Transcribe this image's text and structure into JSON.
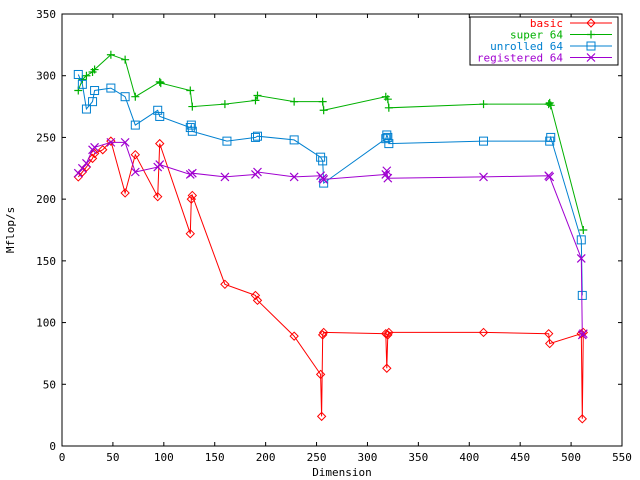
{
  "chart_data": {
    "type": "line",
    "title": "",
    "xlabel": "Dimension",
    "ylabel": "Mflop/s",
    "xlim": [
      0,
      550
    ],
    "ylim": [
      0,
      350
    ],
    "xticks": [
      0,
      50,
      100,
      150,
      200,
      250,
      300,
      350,
      400,
      450,
      500,
      550
    ],
    "yticks": [
      0,
      50,
      100,
      150,
      200,
      250,
      300,
      350
    ],
    "grid": false,
    "legend_position": "top-right",
    "series": [
      {
        "name": "basic",
        "color": "#ff0000",
        "marker": "diamond",
        "x": [
          16,
          20,
          24,
          30,
          32,
          40,
          48,
          62,
          72,
          94,
          96,
          126,
          127,
          128,
          160,
          190,
          192,
          228,
          254,
          255,
          256,
          257,
          318,
          319,
          320,
          321,
          414,
          478,
          479,
          510,
          511,
          512
        ],
        "y": [
          218,
          222,
          226,
          233,
          237,
          240,
          247,
          205,
          236,
          202,
          245,
          172,
          200,
          203,
          131,
          122,
          118,
          89,
          58,
          24,
          90,
          92,
          91,
          63,
          90,
          92,
          92,
          91,
          83,
          91,
          22,
          92
        ]
      },
      {
        "name": "super 64",
        "color": "#00b000",
        "marker": "plus",
        "x": [
          16,
          20,
          24,
          30,
          32,
          48,
          62,
          72,
          96,
          97,
          126,
          128,
          160,
          190,
          192,
          228,
          256,
          257,
          318,
          320,
          321,
          414,
          478,
          479,
          480,
          512
        ],
        "y": [
          288,
          297,
          300,
          303,
          305,
          317,
          313,
          283,
          295,
          294,
          288,
          275,
          277,
          280,
          284,
          279,
          279,
          272,
          283,
          281,
          274,
          277,
          277,
          278,
          276,
          175
        ]
      },
      {
        "name": "unrolled 64",
        "color": "#0080d0",
        "marker": "square",
        "x": [
          16,
          20,
          24,
          30,
          32,
          48,
          62,
          72,
          94,
          96,
          126,
          127,
          128,
          162,
          190,
          192,
          228,
          254,
          256,
          257,
          318,
          319,
          320,
          321,
          414,
          479,
          480,
          510,
          511
        ],
        "y": [
          301,
          293,
          273,
          279,
          288,
          290,
          283,
          260,
          272,
          267,
          258,
          260,
          255,
          247,
          250,
          251,
          248,
          234,
          231,
          213,
          249,
          252,
          250,
          245,
          247,
          247,
          250,
          167,
          122
        ]
      },
      {
        "name": "registered 64",
        "color": "#a000d0",
        "marker": "cross",
        "x": [
          16,
          20,
          24,
          30,
          32,
          48,
          62,
          72,
          94,
          96,
          126,
          128,
          160,
          190,
          192,
          228,
          254,
          256,
          257,
          318,
          319,
          320,
          414,
          478,
          479,
          510,
          511,
          512
        ],
        "y": [
          221,
          225,
          229,
          240,
          242,
          246,
          246,
          222,
          226,
          228,
          220,
          221,
          218,
          220,
          222,
          218,
          219,
          217,
          216,
          220,
          223,
          217,
          218,
          219,
          218,
          152,
          90,
          91
        ]
      }
    ]
  }
}
